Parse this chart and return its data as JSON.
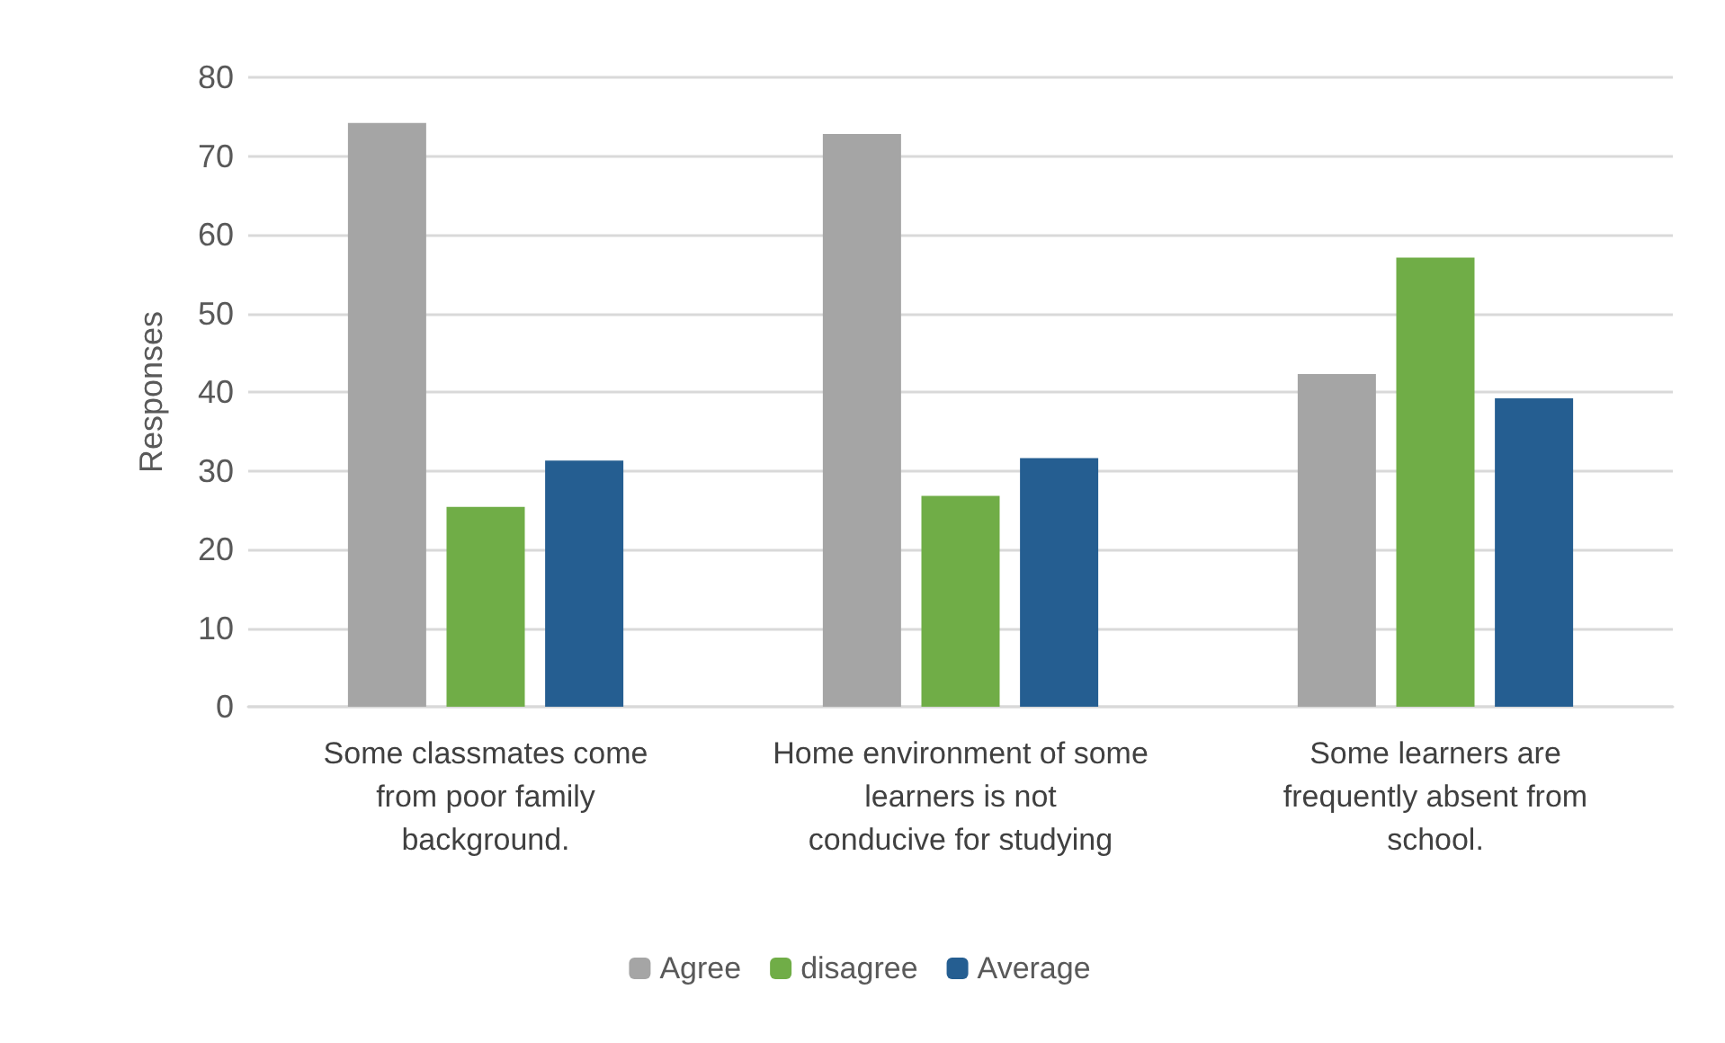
{
  "chart_data": {
    "type": "bar",
    "ylabel": "Responses",
    "categories": [
      "Some classmates come from poor family background.",
      "Home environment of some learners is not conducive for studying",
      "Some learners are frequently absent from school."
    ],
    "series": [
      {
        "name": "Agree",
        "color": "#a5a5a5",
        "values": [
          74.2,
          72.8,
          42.3
        ]
      },
      {
        "name": "disagree",
        "color": "#70ad47",
        "values": [
          25.4,
          26.8,
          57.1
        ]
      },
      {
        "name": "Average",
        "color": "#255e91",
        "values": [
          31.3,
          31.6,
          39.2
        ]
      }
    ],
    "ylim": [
      0,
      80
    ],
    "yticks": [
      0,
      10,
      20,
      30,
      40,
      50,
      60,
      70,
      80
    ],
    "grid": "y",
    "legend": "bottom"
  }
}
